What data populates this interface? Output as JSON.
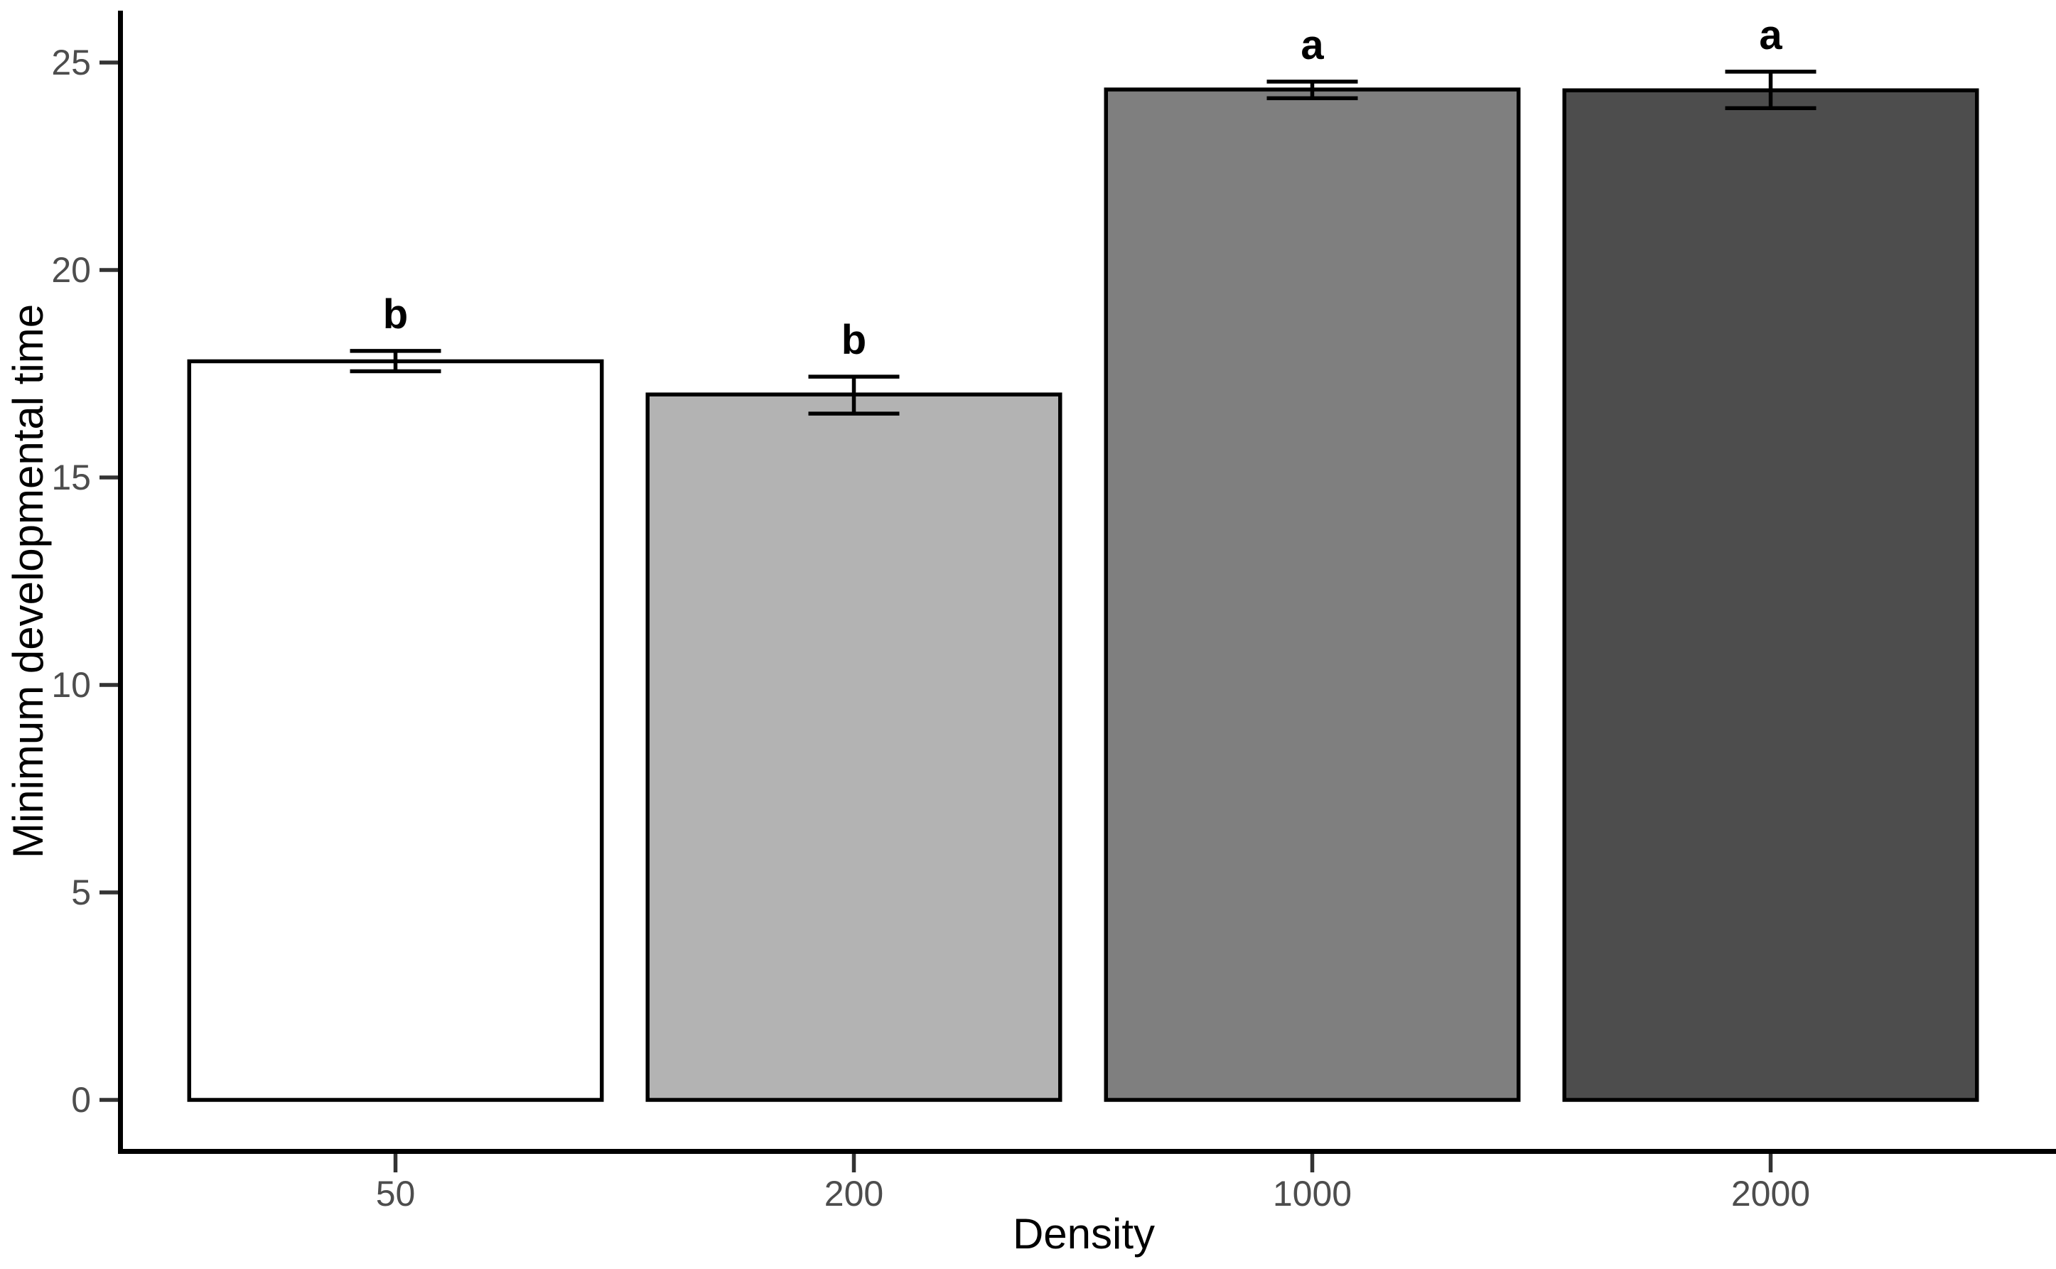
{
  "chart_data": {
    "type": "bar",
    "title": "",
    "xlabel": "Density",
    "ylabel": "Minimum developmental time",
    "categories": [
      "50",
      "200",
      "1000",
      "2000"
    ],
    "values": [
      17.8,
      17.0,
      24.35,
      24.33
    ],
    "error_upper": [
      18.05,
      17.43,
      24.54,
      24.78
    ],
    "error_lower": [
      17.56,
      16.54,
      24.14,
      23.9
    ],
    "sig_letters": [
      "b",
      "b",
      "a",
      "a"
    ],
    "bar_fills": [
      "#ffffff",
      "#b3b3b3",
      "#7f7f7f",
      "#4d4d4d"
    ],
    "bar_stroke": "#000000",
    "errorbar_color": "#000000",
    "axis_color": "#000000",
    "tick_color": "#333333",
    "tick_label_color": "#4d4d4d",
    "ylim": [
      0,
      25
    ],
    "yticks": [
      0,
      5,
      10,
      15,
      20,
      25
    ],
    "grid": false,
    "legend": false,
    "background": "#ffffff"
  }
}
